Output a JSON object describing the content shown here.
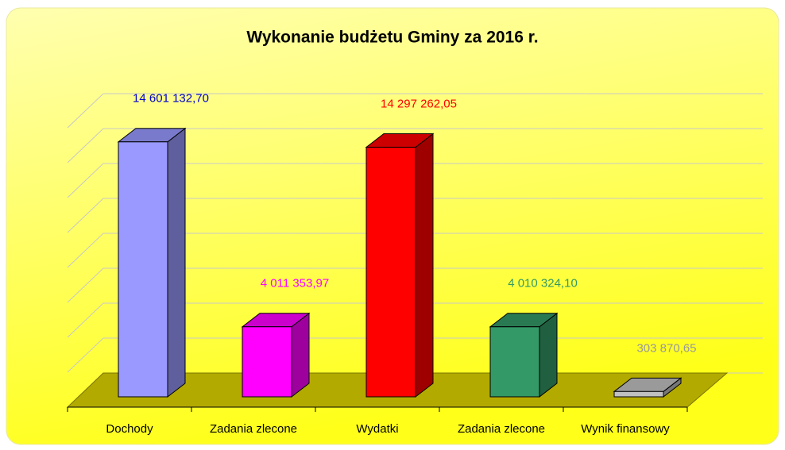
{
  "chart_data": {
    "type": "bar",
    "title": "Wykonanie budżetu Gminy za 2016 r.",
    "categories": [
      "Dochody",
      "Zadania zlecone",
      "Wydatki",
      "Zadania zlecone",
      "Wynik finansowy"
    ],
    "values": [
      14601132.7,
      4011353.97,
      14297262.05,
      4010324.1,
      303870.65
    ],
    "value_labels": [
      "14 601 132,70",
      "4 011 353,97",
      "14 297 262,05",
      "4 010 324,10",
      "303 870,65"
    ],
    "colors": [
      "#9999ff",
      "#ff00ff",
      "#ff0000",
      "#339966",
      "#c0c0c0"
    ],
    "label_colors": [
      "#0000cc",
      "#ff00ff",
      "#ff0000",
      "#339966",
      "#999999"
    ],
    "ylim": [
      0,
      16000000
    ],
    "yticks": [
      0,
      2000000,
      4000000,
      6000000,
      8000000,
      10000000,
      12000000,
      14000000,
      16000000
    ],
    "grid": true
  }
}
